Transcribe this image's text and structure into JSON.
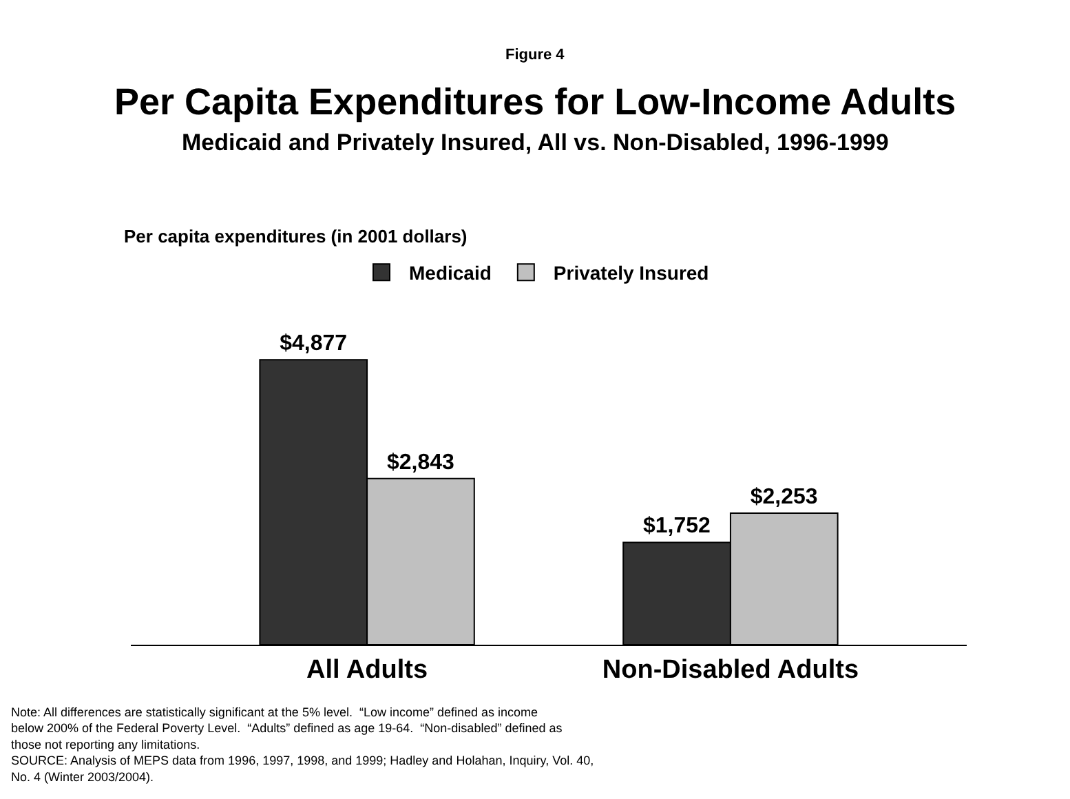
{
  "chart_data": {
    "type": "bar",
    "title": "Per Capita Expenditures for Low-Income Adults",
    "subtitle": "Medicaid and Privately Insured, All vs. Non-Disabled, 1996-1999",
    "categories": [
      "All Adults",
      "Non-Disabled Adults"
    ],
    "series": [
      {
        "name": "Medicaid",
        "color": "#333333",
        "values": [
          4877,
          1752
        ],
        "value_labels": [
          "$4,877",
          "$1,752"
        ]
      },
      {
        "name": "Privately Insured",
        "color": "#c0c0c0",
        "values": [
          2843,
          2253
        ],
        "value_labels": [
          "$2,843",
          "$2,253"
        ]
      }
    ],
    "legend": "top",
    "annotations": [
      "Figure 4",
      "Per capita expenditures (in 2001 dollars)",
      "Note: All differences are statistically significant at the 5% level.  “Low income” defined as income below 200% of the Federal Poverty Level.  “Adults” defined as age 19-64.  “Non-disabled” defined as those not reporting any limitations.",
      "SOURCE: Analysis of MEPS data from 1996, 1997, 1998, and 1999; Hadley and Holahan, Inquiry, Vol. 40, No. 4 (Winter 2003/2004)."
    ]
  }
}
